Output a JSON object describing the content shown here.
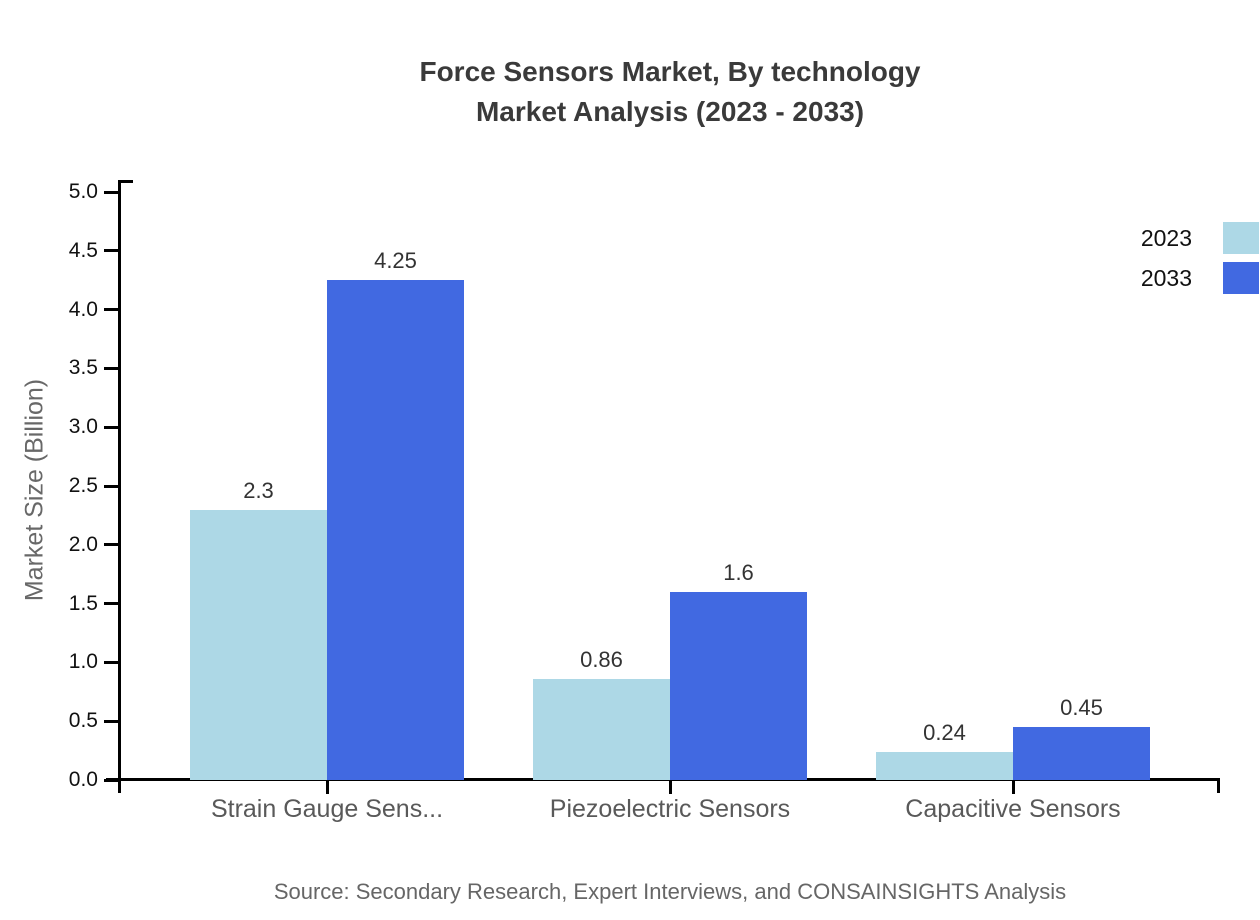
{
  "title": {
    "line1": "Force Sensors Market, By technology",
    "line2": "Market Analysis (2023 - 2033)"
  },
  "chart_data": {
    "type": "bar",
    "categories": [
      "Strain Gauge Sens...",
      "Piezoelectric Sensors",
      "Capacitive Sensors"
    ],
    "series": [
      {
        "name": "2023",
        "color": "#ADD8E6",
        "values": [
          2.3,
          0.86,
          0.24
        ]
      },
      {
        "name": "2033",
        "color": "#4169E1",
        "values": [
          4.25,
          1.6,
          0.45
        ]
      }
    ],
    "value_labels": [
      [
        "2.3",
        "4.25"
      ],
      [
        "0.86",
        "1.6"
      ],
      [
        "0.24",
        "0.45"
      ]
    ],
    "title": "Force Sensors Market, By technology Market Analysis (2023 - 2033)",
    "xlabel": "",
    "ylabel": "Market Size (Billion)",
    "ylim": [
      0,
      5
    ],
    "ytick_step": 0.5,
    "yticks": [
      "0.0",
      "0.5",
      "1.0",
      "1.5",
      "2.0",
      "2.5",
      "3.0",
      "3.5",
      "4.0",
      "4.5",
      "5.0"
    ],
    "grid": false,
    "legend_position": "top-right",
    "axis_color": "#000000"
  },
  "source": "Source: Secondary Research, Expert Interviews, and CONSAINSIGHTS Analysis"
}
